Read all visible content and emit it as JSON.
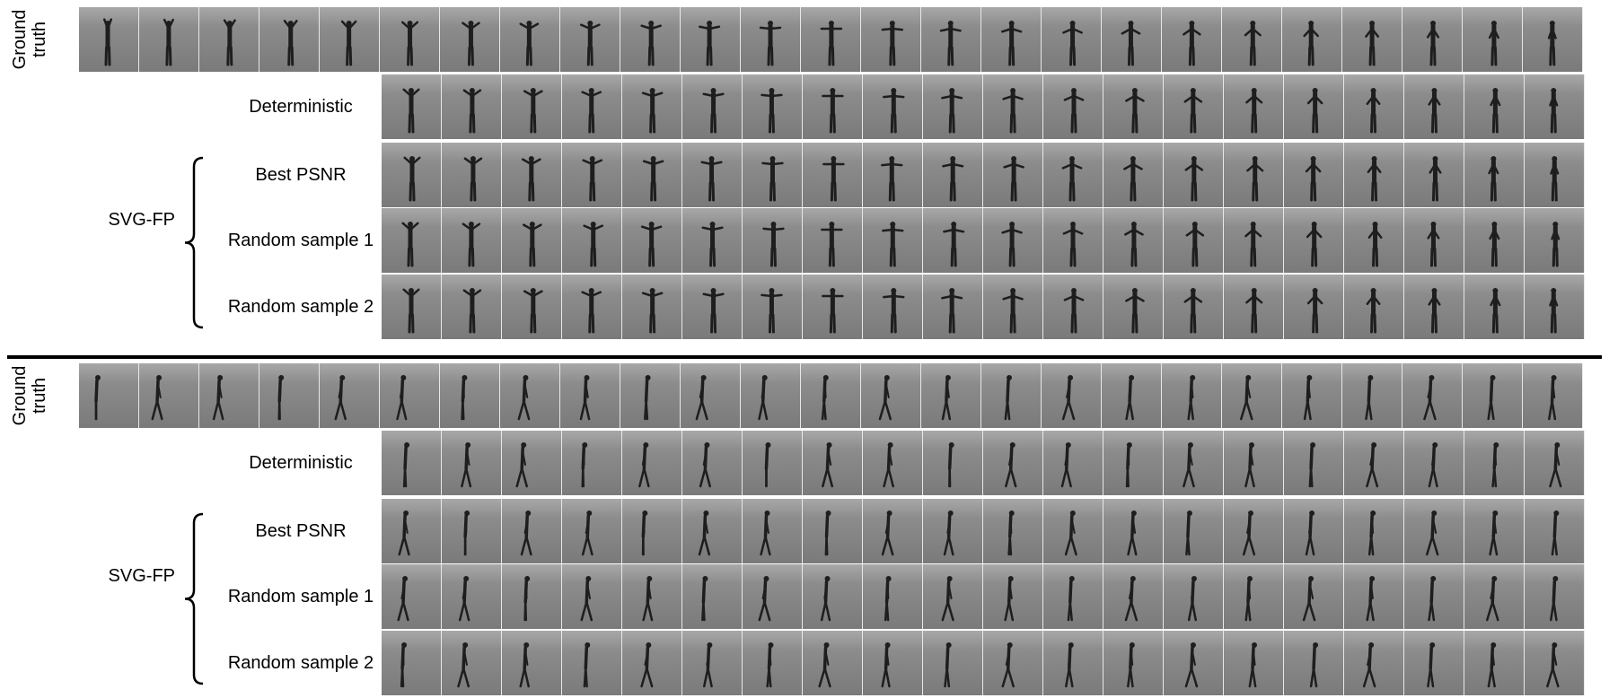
{
  "panels": [
    {
      "motion": "arms",
      "rows": [
        {
          "key": "ground_truth",
          "label": "Ground truth",
          "frames": 25
        },
        {
          "key": "deterministic",
          "label": "Deterministic",
          "frames": 20
        },
        {
          "key": "best_psnr",
          "label": "Best PSNR",
          "frames": 20
        },
        {
          "key": "random_1",
          "label": "Random sample 1",
          "frames": 20
        },
        {
          "key": "random_2",
          "label": "Random sample 2",
          "frames": 20
        }
      ],
      "group_label": "SVG-FP"
    },
    {
      "motion": "walk",
      "rows": [
        {
          "key": "ground_truth",
          "label": "Ground truth",
          "frames": 25
        },
        {
          "key": "deterministic",
          "label": "Deterministic",
          "frames": 20
        },
        {
          "key": "best_psnr",
          "label": "Best PSNR",
          "frames": 20
        },
        {
          "key": "random_1",
          "label": "Random sample 1",
          "frames": 20
        },
        {
          "key": "random_2",
          "label": "Random sample 2",
          "frames": 20
        }
      ],
      "group_label": "SVG-FP"
    }
  ],
  "colors": {
    "background": "#808080",
    "figure": "#1e1e1e",
    "separator": "#000000"
  }
}
